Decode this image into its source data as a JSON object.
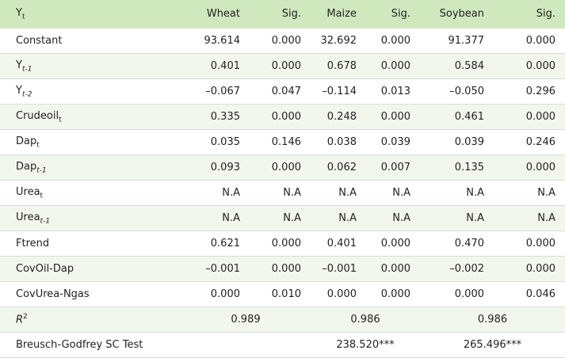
{
  "table": {
    "header": {
      "label": "Y",
      "sub": "t",
      "columns": [
        "Wheat",
        "Sig.",
        "Maize",
        "Sig.",
        "Soybean",
        "Sig."
      ]
    },
    "rows": [
      {
        "label": "Constant",
        "cells": [
          "93.614",
          "0.000",
          "32.692",
          "0.000",
          "91.377",
          "0.000"
        ]
      },
      {
        "label": "Y",
        "sub": "t-1",
        "cells": [
          "0.401",
          "0.000",
          "0.678",
          "0.000",
          "0.584",
          "0.000"
        ]
      },
      {
        "label": "Y",
        "sub": "t-2",
        "cells": [
          "–0.067",
          "0.047",
          "–0.114",
          "0.013",
          "–0.050",
          "0.296"
        ]
      },
      {
        "label": "Crudeoil",
        "sub": "t",
        "cells": [
          "0.335",
          "0.000",
          "0.248",
          "0.000",
          "0.461",
          "0.000"
        ]
      },
      {
        "label": "Dap",
        "sub": "t",
        "cells": [
          "0.035",
          "0.146",
          "0.038",
          "0.039",
          "0.039",
          "0.246"
        ]
      },
      {
        "label": "Dap",
        "sub": "t-1",
        "cells": [
          "0.093",
          "0.000",
          "0.062",
          "0.007",
          "0.135",
          "0.000"
        ]
      },
      {
        "label": "Urea",
        "sub": "t",
        "cells": [
          "N.A",
          "N.A",
          "N.A",
          "N.A",
          "N.A",
          "N.A"
        ]
      },
      {
        "label": "Urea",
        "sub": "t-1",
        "cells": [
          "N.A",
          "N.A",
          "N.A",
          "N.A",
          "N.A",
          "N.A"
        ]
      },
      {
        "label": "Ftrend",
        "cells": [
          "0.621",
          "0.000",
          "0.401",
          "0.000",
          "0.470",
          "0.000"
        ]
      },
      {
        "label": "CovOil-Dap",
        "cells": [
          "–0.001",
          "0.000",
          "–0.001",
          "0.000",
          "–0.002",
          "0.000"
        ]
      },
      {
        "label": "CovUrea-Ngas",
        "cells": [
          "0.000",
          "0.010",
          "0.000",
          "0.000",
          "0.000",
          "0.046"
        ]
      },
      {
        "label": "R",
        "sup": "2",
        "spans": [
          "0.989",
          "0.986",
          "0.986"
        ]
      },
      {
        "label": "Breusch-Godfrey SC Test",
        "spans": [
          null,
          "238.520***",
          "265.496***"
        ]
      }
    ]
  }
}
